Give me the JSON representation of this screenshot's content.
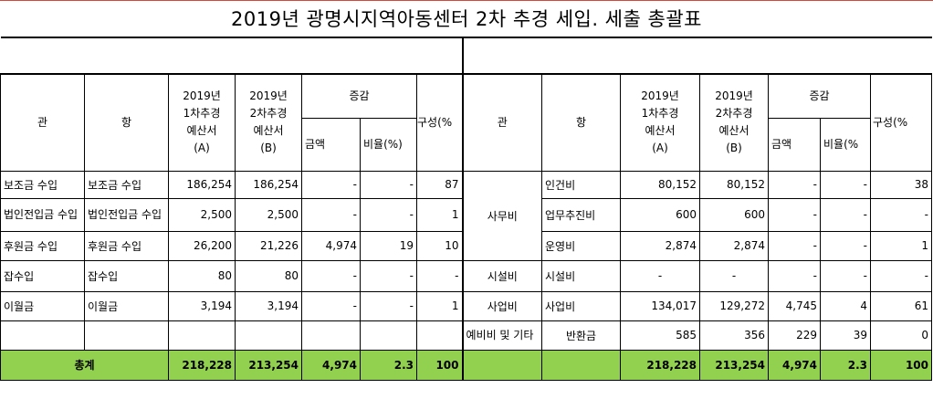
{
  "title": "2019년 광명시지역아동센터 2차 추경 세입. 세출 총괄표",
  "left_headers": {
    "gwan": "관",
    "hang": "항",
    "col_a_l1": "2019년",
    "col_a_l2": "1차추경",
    "col_a_l3": "예산서",
    "col_a_l4": "(A)",
    "col_b_l1": "2019년",
    "col_b_l2": "2차추경",
    "col_b_l3": "예산서",
    "col_b_l4": "(B)",
    "change": "증감",
    "amount": "금액",
    "ratio": "비율(%)",
    "composition": "구성(%"
  },
  "right_headers": {
    "gwan": "관",
    "hang": "항",
    "col_a_l1": "2019년",
    "col_a_l2": "1차추경",
    "col_a_l3": "예산서",
    "col_a_l4": "(A)",
    "col_b_l1": "2019년",
    "col_b_l2": "2차추경",
    "col_b_l3": "예산서",
    "col_b_l4": "(B)",
    "change": "증감",
    "amount": "금액",
    "ratio": "비율(%",
    "composition": "구성(%"
  },
  "income_rows": [
    {
      "gwan": "보조금 수입",
      "hang": "보조금 수입",
      "a": "186,254",
      "b": "186,254",
      "amount": "-",
      "ratio": "-",
      "comp": "87"
    },
    {
      "gwan": "법인전입금 수입",
      "hang": "법인전입금 수입",
      "a": "2,500",
      "b": "2,500",
      "amount": "-",
      "ratio": "-",
      "comp": "1"
    },
    {
      "gwan": "후원금 수입",
      "hang": "후원금 수입",
      "a": "26,200",
      "b": "21,226",
      "amount": "4,974",
      "ratio": "19",
      "comp": "10"
    },
    {
      "gwan": "잡수입",
      "hang": "잡수입",
      "a": "80",
      "b": "80",
      "amount": "-",
      "ratio": "-",
      "comp": "-"
    },
    {
      "gwan": "이월금",
      "hang": "이월금",
      "a": "3,194",
      "b": "3,194",
      "amount": "-",
      "ratio": "-",
      "comp": "1"
    }
  ],
  "expense_groups": {
    "office": "사무비",
    "facility": "시설비",
    "business": "사업비",
    "reserve": "예비비 및 기타"
  },
  "expense_rows": [
    {
      "hang": "인건비",
      "a": "80,152",
      "b": "80,152",
      "amount": "-",
      "ratio": "-",
      "comp": "38"
    },
    {
      "hang": "업무추진비",
      "a": "600",
      "b": "600",
      "amount": "-",
      "ratio": "-",
      "comp": "-"
    },
    {
      "hang": "운영비",
      "a": "2,874",
      "b": "2,874",
      "amount": "-",
      "ratio": "-",
      "comp": "1"
    },
    {
      "hang": "시설비",
      "a": "-",
      "b": "-",
      "amount": "-",
      "ratio": "-",
      "comp": "-"
    },
    {
      "hang": "사업비",
      "a": "134,017",
      "b": "129,272",
      "amount": "4,745",
      "ratio": "4",
      "comp": "61"
    },
    {
      "hang": "반환금",
      "a": "585",
      "b": "356",
      "amount": "229",
      "ratio": "39",
      "comp": "0"
    }
  ],
  "totals": {
    "label": "총계",
    "left": {
      "a": "218,228",
      "b": "213,254",
      "amount": "4,974",
      "ratio": "2.3",
      "comp": "100"
    },
    "right": {
      "a": "218,228",
      "b": "213,254",
      "amount": "4,974",
      "ratio": "2.3",
      "comp": "100"
    }
  },
  "colors": {
    "total_row": "#92d050",
    "title_line": "#d24a3c"
  }
}
